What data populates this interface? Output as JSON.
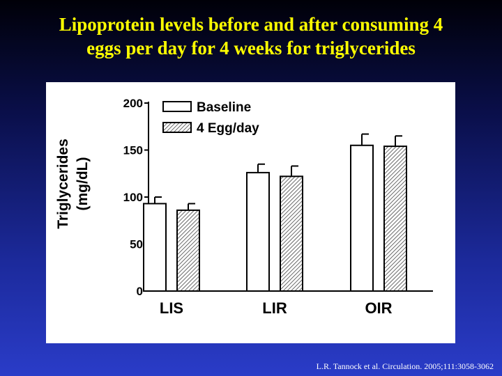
{
  "slide": {
    "title_line1": "Lipoprotein levels before and after consuming 4",
    "title_line2": "eggs per day for 4 weeks for triglycerides",
    "citation": "L.R. Tannock et al. Circulation. 2005;111:3058-3062"
  },
  "colors": {
    "title": "#ffff00",
    "background_top": "#000008",
    "background_bottom": "#2a3cc8",
    "bar_stroke": "#000000"
  },
  "chart_data": {
    "type": "bar",
    "categories": [
      "LIS",
      "LIR",
      "OIR"
    ],
    "series": [
      {
        "name": "Baseline",
        "values": [
          93,
          126,
          155
        ],
        "errors": [
          7,
          9,
          12
        ],
        "pattern": "open"
      },
      {
        "name": "4 Egg/day",
        "values": [
          86,
          122,
          154
        ],
        "errors": [
          7,
          11,
          11
        ],
        "pattern": "hatched"
      }
    ],
    "ylabel_line1": "Triglycerides",
    "ylabel_line2": "(mg/dL)",
    "xlabel": "",
    "ylim": [
      0,
      200
    ],
    "yticks": [
      0,
      50,
      100,
      150,
      200
    ],
    "legend_position": "top-left",
    "grid": false
  }
}
